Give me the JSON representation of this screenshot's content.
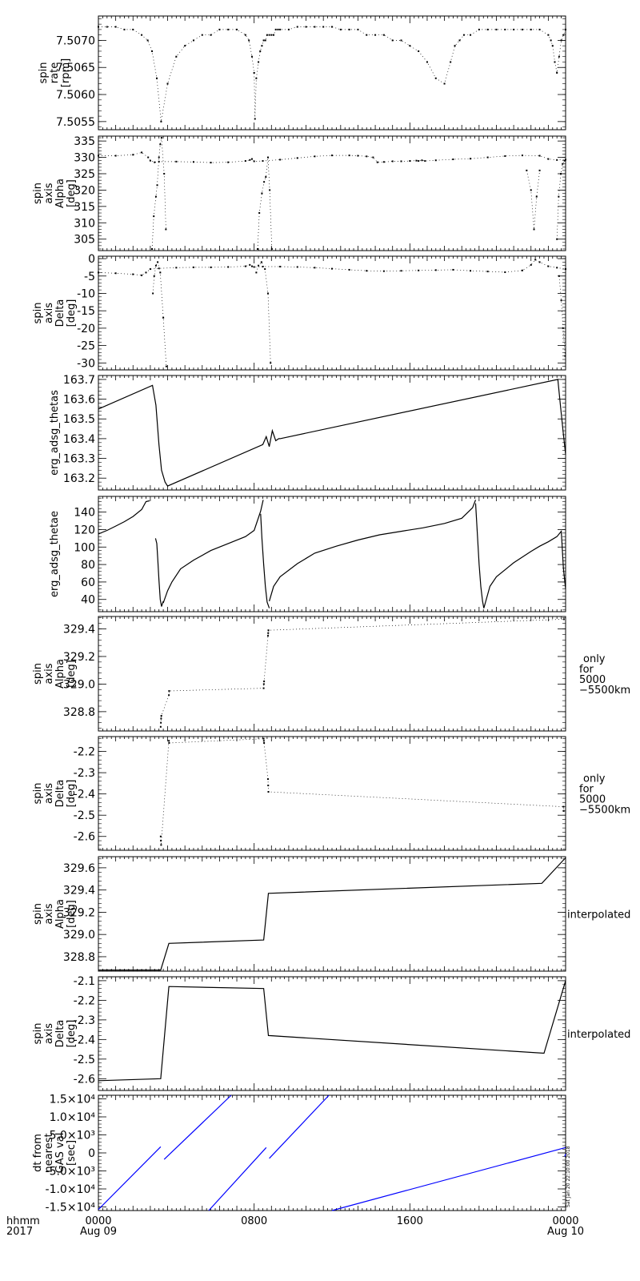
{
  "chart_data": [
    {
      "type": "scatter",
      "ylabel": [
        "spin",
        "rate",
        "[rpm]"
      ],
      "ylim": [
        7.50535,
        7.50745
      ],
      "yticks": [
        "7.5055",
        "7.5060",
        "7.5065",
        "7.5070"
      ],
      "series": [
        {
          "x": [
            0,
            2,
            4,
            6,
            8,
            10,
            11.4,
            12.4,
            13.5,
            14.5,
            16,
            18,
            20,
            22,
            24,
            26,
            28,
            30,
            32,
            34,
            34.8,
            35.5,
            36,
            36.2,
            36.5,
            37,
            37.4,
            37.8,
            38.2,
            38.6,
            39,
            39.5,
            40,
            40.5,
            41,
            41.5,
            42,
            44,
            46,
            48,
            50,
            52,
            54,
            56,
            58,
            60,
            62,
            64,
            66,
            68,
            70,
            72,
            74,
            76,
            78,
            80,
            81.4,
            82.4,
            83.5,
            84.5,
            86,
            88,
            90,
            92,
            94,
            96,
            98,
            100,
            102,
            104,
            104.6,
            105,
            105.5,
            106,
            106.5,
            107,
            107.5,
            108
          ],
          "y": [
            7.50725,
            7.50725,
            7.50725,
            7.5072,
            7.5072,
            7.5071,
            7.507,
            7.5068,
            7.5063,
            7.5055,
            7.5062,
            7.5067,
            7.5069,
            7.507,
            7.5071,
            7.5071,
            7.5072,
            7.5072,
            7.5072,
            7.5071,
            7.507,
            7.5067,
            7.5064,
            7.50555,
            7.5063,
            7.5066,
            7.5068,
            7.5069,
            7.507,
            7.507,
            7.5071,
            7.5071,
            7.5071,
            7.5071,
            7.5072,
            7.5072,
            7.5072,
            7.5072,
            7.50725,
            7.50725,
            7.50725,
            7.50725,
            7.50725,
            7.5072,
            7.5072,
            7.5072,
            7.5071,
            7.5071,
            7.5071,
            7.507,
            7.507,
            7.5069,
            7.5068,
            7.5066,
            7.5063,
            7.5062,
            7.5066,
            7.5069,
            7.507,
            7.5071,
            7.5071,
            7.5072,
            7.5072,
            7.5072,
            7.5072,
            7.5072,
            7.5072,
            7.5072,
            7.5072,
            7.5071,
            7.507,
            7.5069,
            7.5066,
            7.5064,
            7.5067,
            7.507,
            7.5071,
            7.5072
          ]
        }
      ]
    },
    {
      "type": "scatter",
      "ylabel": [
        "spin",
        "axis",
        "Alpha",
        "[deg]"
      ],
      "ylim": [
        301.5,
        336.5
      ],
      "yticks": [
        "305",
        "310",
        "315",
        "320",
        "325",
        "330",
        "335"
      ],
      "series": [
        {
          "x": [
            0,
            4,
            8,
            10,
            11.5,
            12,
            13,
            14,
            18,
            22,
            26,
            30,
            34,
            35,
            35.5,
            36,
            38,
            42,
            46,
            50,
            54,
            58,
            60,
            62,
            63.5,
            64.5,
            66,
            68,
            70,
            72,
            73.5,
            74,
            74.8,
            75.5,
            78,
            82,
            86,
            90,
            94,
            98,
            102,
            104,
            106,
            108
          ],
          "y": [
            330.5,
            330.5,
            330.8,
            331.5,
            330,
            329,
            328.5,
            328.7,
            328.7,
            328.6,
            328.4,
            328.5,
            328.9,
            329.2,
            329.5,
            328.8,
            328.9,
            329.3,
            329.8,
            330.3,
            330.6,
            330.6,
            330.5,
            330.3,
            330,
            328.5,
            328.6,
            328.8,
            328.8,
            328.9,
            329,
            328.9,
            329.1,
            328.9,
            329.1,
            329.4,
            329.6,
            330,
            330.4,
            330.6,
            330.5,
            329.5,
            329.2,
            329.3
          ]
        },
        {
          "x": [
            12.4,
            12.8,
            13.3,
            13.6,
            14,
            14.3,
            14.6,
            15.2,
            15.6
          ],
          "y": [
            302,
            312,
            318,
            321.5,
            330,
            334,
            336,
            325,
            308
          ]
        },
        {
          "x": [
            36.8,
            37.2,
            37.8,
            38.3,
            38.7,
            39.2,
            39.6,
            40.1
          ],
          "y": [
            302,
            313,
            319,
            322.5,
            324,
            330,
            320,
            302
          ]
        },
        {
          "x": [
            106,
            106.4,
            106.9,
            107.3,
            107.8
          ],
          "y": [
            305,
            318,
            325,
            328,
            329
          ]
        },
        {
          "x": [
            99,
            100,
            100.7,
            101.3,
            102
          ],
          "y": [
            326,
            320,
            308,
            318,
            326
          ]
        }
      ]
    },
    {
      "type": "scatter",
      "ylabel": [
        "spin",
        "axis",
        "Delta",
        "[deg]"
      ],
      "ylim": [
        -32,
        0.7
      ],
      "yticks": [
        "-30",
        "-25",
        "-20",
        "-15",
        "-10",
        "-5",
        "0"
      ],
      "series": [
        {
          "x": [
            0,
            4,
            8,
            10,
            11,
            12,
            14,
            18,
            22,
            26,
            30,
            34,
            35,
            35.5,
            36,
            38,
            42,
            46,
            50,
            54,
            58,
            62,
            66,
            70,
            74,
            78,
            82,
            86,
            90,
            94,
            98,
            100,
            101,
            102,
            104,
            106,
            108
          ],
          "y": [
            -4,
            -4.2,
            -4.5,
            -4.8,
            -4,
            -3,
            -2.8,
            -2.6,
            -2.5,
            -2.5,
            -2.4,
            -2.2,
            -1.8,
            -2.2,
            -2.4,
            -2.3,
            -2.3,
            -2.4,
            -2.6,
            -2.9,
            -3.2,
            -3.5,
            -3.6,
            -3.5,
            -3.4,
            -3.3,
            -3.2,
            -3.5,
            -3.7,
            -3.9,
            -3.4,
            -1.8,
            -0.3,
            -1,
            -2.2,
            -2.6,
            -3
          ]
        },
        {
          "x": [
            12.6,
            12.9,
            13.3,
            13.7,
            14.3,
            15,
            15.7
          ],
          "y": [
            -10,
            -5,
            -2,
            -1,
            -4,
            -17,
            -31
          ]
        },
        {
          "x": [
            36.5,
            37,
            37.7,
            38.5,
            39.2,
            39.8
          ],
          "y": [
            -4,
            -2,
            -1,
            -3,
            -10,
            -30
          ]
        },
        {
          "x": [
            106.5,
            107,
            107.4,
            107.9
          ],
          "y": [
            -5,
            -12,
            -20,
            -28
          ]
        }
      ]
    },
    {
      "type": "line",
      "ylabel": [
        "erg_adsg_thetas"
      ],
      "ylim": [
        163.14,
        163.72
      ],
      "yticks": [
        "163.2",
        "163.3",
        "163.4",
        "163.5",
        "163.6",
        "163.7"
      ],
      "series": [
        {
          "x": [
            0,
            12.5,
            13.3,
            14,
            14.6,
            15.4,
            16,
            38,
            38.8,
            39.5,
            40.2,
            41,
            41.7,
            42,
            106.2,
            106.8,
            107.5,
            108
          ],
          "y": [
            163.55,
            163.67,
            163.57,
            163.37,
            163.24,
            163.18,
            163.16,
            163.37,
            163.41,
            163.36,
            163.44,
            163.39,
            163.4,
            163.4,
            163.7,
            163.57,
            163.42,
            163.32
          ]
        }
      ]
    },
    {
      "type": "line",
      "ylabel": [
        "erg_adsg_thetae"
      ],
      "ylim": [
        26,
        158
      ],
      "yticks": [
        "40",
        "60",
        "80",
        "100",
        "120",
        "140"
      ],
      "series": [
        {
          "x": [
            0,
            2,
            4,
            6,
            8,
            10,
            11,
            11.8
          ],
          "y": [
            115,
            119,
            124,
            129,
            135,
            143,
            152,
            153
          ]
        },
        {
          "x": [
            13.2,
            13.5,
            13.7,
            14,
            14.3,
            14.6,
            15
          ],
          "y": [
            110,
            104,
            88,
            62,
            40,
            32,
            38
          ]
        },
        {
          "x": [
            15,
            16,
            17,
            19,
            22,
            26,
            30,
            34,
            36,
            37.5,
            38.1
          ],
          "y": [
            36,
            50,
            60,
            75,
            85,
            96,
            104,
            112,
            119,
            141,
            154
          ]
        },
        {
          "x": [
            37.5,
            37.8,
            38.2,
            38.6,
            39,
            39.5
          ],
          "y": [
            138,
            110,
            80,
            55,
            37,
            30
          ]
        },
        {
          "x": [
            39.5,
            40.5,
            42,
            46,
            50,
            55,
            60,
            65,
            70,
            75,
            80,
            84,
            86.5,
            87.2
          ],
          "y": [
            38,
            55,
            66,
            81,
            93,
            101,
            108,
            114,
            118,
            122,
            127,
            133,
            145,
            154
          ]
        },
        {
          "x": [
            87.2,
            87.6,
            88,
            88.4,
            88.8,
            89.1
          ],
          "y": [
            150,
            115,
            80,
            55,
            38,
            30
          ]
        },
        {
          "x": [
            89.1,
            90.5,
            92,
            96,
            100,
            102,
            104,
            106,
            107,
            107.5,
            108
          ],
          "y": [
            30,
            55,
            66,
            82,
            95,
            101,
            106,
            112,
            118,
            75,
            52
          ]
        }
      ]
    },
    {
      "type": "scatter",
      "ylabel": [
        "spin",
        "axis",
        "Alpha",
        "[deg]"
      ],
      "ylim": [
        328.66,
        329.49
      ],
      "yticks": [
        "328.8",
        "329.0",
        "329.2",
        "329.4"
      ],
      "series": [
        {
          "x": [
            14.4,
            14.45,
            14.5,
            14.55,
            16.3,
            16.35,
            38.2,
            38.25,
            38.3,
            39.2,
            39.25,
            39.3,
            107.6
          ],
          "y": [
            328.69,
            328.72,
            328.75,
            328.77,
            328.92,
            328.95,
            328.97,
            329.0,
            329.02,
            329.35,
            329.37,
            329.39,
            329.47
          ]
        }
      ]
    },
    {
      "type": "scatter",
      "ylabel": [
        "spin",
        "axis",
        "Delta",
        "[deg]"
      ],
      "ylim": [
        -2.665,
        -2.13
      ],
      "yticks": [
        "-2.6",
        "-2.5",
        "-2.4",
        "-2.3",
        "-2.2"
      ],
      "series": [
        {
          "x": [
            14.4,
            14.45,
            14.5,
            16.3,
            16.35,
            38.2,
            38.25,
            38.3,
            39.2,
            39.25,
            39.3,
            107.5,
            107.55
          ],
          "y": [
            -2.6,
            -2.62,
            -2.64,
            -2.15,
            -2.16,
            -2.14,
            -2.15,
            -2.16,
            -2.33,
            -2.36,
            -2.39,
            -2.46,
            -2.48
          ]
        }
      ]
    },
    {
      "type": "line",
      "ylabel": [
        "spin",
        "axis",
        "Alpha",
        "[deg]"
      ],
      "ylim": [
        328.67,
        329.7
      ],
      "yticks": [
        "328.8",
        "329.0",
        "329.2",
        "329.4",
        "329.6"
      ],
      "series": [
        {
          "x": [
            0,
            14.4,
            16.3,
            38.2,
            39.3,
            102.5,
            108
          ],
          "y": [
            328.68,
            328.68,
            328.92,
            328.95,
            329.37,
            329.46,
            329.69
          ]
        }
      ]
    },
    {
      "type": "line",
      "ylabel": [
        "spin",
        "axis",
        "Delta",
        "[deg]"
      ],
      "ylim": [
        -2.66,
        -2.08
      ],
      "yticks": [
        "-2.6",
        "-2.5",
        "-2.4",
        "-2.3",
        "-2.2",
        "-2.1"
      ],
      "series": [
        {
          "x": [
            0,
            14.4,
            16.3,
            38.2,
            39.3,
            103,
            108
          ],
          "y": [
            -2.61,
            -2.6,
            -2.13,
            -2.14,
            -2.38,
            -2.47,
            -2.1
          ]
        }
      ]
    },
    {
      "type": "line",
      "ylabel": [
        "dt from",
        "nearest",
        "GAS val",
        "[sec]"
      ],
      "ylim": [
        -16000,
        16000
      ],
      "yticks": [
        "-1.5×10⁴",
        "-1.0×10⁴",
        "-5.0×10³",
        "0",
        "5.0×10³",
        "1.0×10⁴",
        "1.5×10⁴"
      ],
      "line_color": "#0000ff",
      "series": [
        {
          "x": [
            0,
            14.4
          ],
          "y": [
            -15700,
            1700
          ]
        },
        {
          "x": [
            15.2,
            30.7
          ],
          "y": [
            -1800,
            16000
          ]
        },
        {
          "x": [
            25.5,
            38.8
          ],
          "y": [
            -16000,
            1500
          ]
        },
        {
          "x": [
            39.5,
            53.3
          ],
          "y": [
            -1500,
            16000
          ]
        },
        {
          "x": [
            54,
            108
          ],
          "y": [
            -16000,
            1500
          ]
        },
        {
          "x": [
            107.8,
            108
          ],
          "y": [
            -1000,
            -300
          ]
        }
      ]
    }
  ],
  "right_notes": [
    [
      "only",
      "for",
      "5000",
      "−5500km"
    ],
    [
      "only",
      "for",
      "5000",
      "−5500km"
    ],
    [
      "interpolated"
    ],
    [
      "interpolated"
    ]
  ],
  "xaxis": {
    "range": [
      0,
      108
    ],
    "ticks": [
      {
        "x": 0,
        "lines": [
          "0000",
          "Aug 09"
        ]
      },
      {
        "x": 36,
        "lines": [
          "0800",
          ""
        ]
      },
      {
        "x": 72,
        "lines": [
          "1600",
          ""
        ]
      },
      {
        "x": 108,
        "lines": [
          "0000",
          "Aug 10"
        ]
      }
    ],
    "row_labels": [
      "hhmm",
      "2017"
    ]
  },
  "side_stamp": "Sat Jan 20 22:10:00 2018"
}
